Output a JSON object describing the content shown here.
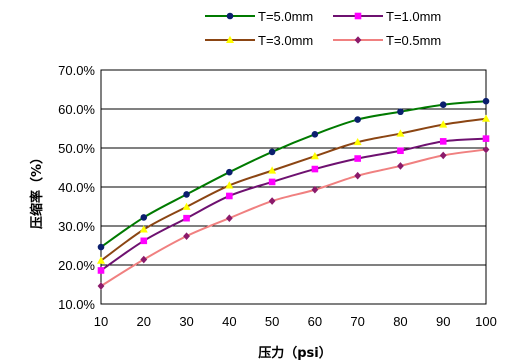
{
  "chart_data": {
    "type": "line",
    "xlabel": "压力（psi）",
    "ylabel": "压缩率（%）",
    "x": [
      10,
      20,
      30,
      40,
      50,
      60,
      70,
      80,
      90,
      100
    ],
    "xlim": [
      10,
      100
    ],
    "ylim": [
      10,
      70
    ],
    "yticks": [
      "10.0%",
      "20.0%",
      "30.0%",
      "40.0%",
      "50.0%",
      "60.0%",
      "70.0%"
    ],
    "xticks": [
      "10",
      "20",
      "30",
      "40",
      "50",
      "60",
      "70",
      "80",
      "90",
      "100"
    ],
    "grid": "horizontal",
    "legend_position": "top",
    "series": [
      {
        "name": "T=5.0mm",
        "color": "#007a00",
        "marker": "circle",
        "markerColor": "#0b1f6e",
        "values": [
          24.6,
          32.2,
          38.1,
          43.8,
          49.0,
          53.5,
          57.3,
          59.3,
          61.1,
          62.0
        ]
      },
      {
        "name": "T=1.0mm",
        "color": "#6e1170",
        "marker": "square",
        "markerColor": "#ff00ff",
        "values": [
          18.6,
          26.2,
          32.0,
          37.7,
          41.3,
          44.6,
          47.3,
          49.3,
          51.7,
          52.4
        ]
      },
      {
        "name": "T=3.0mm",
        "color": "#8b4513",
        "marker": "triangle",
        "markerColor": "#ffff00",
        "values": [
          21.1,
          29.1,
          34.9,
          40.4,
          44.2,
          47.9,
          51.5,
          53.7,
          56.0,
          57.5
        ]
      },
      {
        "name": "T=0.5mm",
        "color": "#f08080",
        "marker": "diamond",
        "markerColor": "#8b1a6b",
        "values": [
          14.6,
          21.4,
          27.4,
          32.0,
          36.4,
          39.3,
          42.9,
          45.4,
          48.1,
          49.6
        ]
      }
    ]
  }
}
